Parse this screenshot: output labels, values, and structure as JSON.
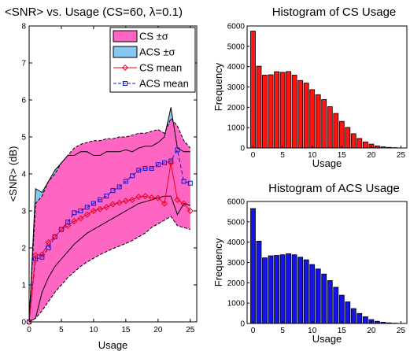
{
  "chart_data": [
    {
      "type": "line",
      "title": "<SNR> vs. Usage (CS=60, λ=0.1)",
      "xlabel": "Usage",
      "ylabel": "<SNR> (dB)",
      "xlim": [
        0,
        26
      ],
      "ylim": [
        0,
        8
      ],
      "xticks": [
        "0",
        "5",
        "10",
        "15",
        "20",
        "25"
      ],
      "yticks": [
        "0",
        "1",
        "2",
        "3",
        "4",
        "5",
        "6",
        "7",
        "8"
      ],
      "legend_position": "top-right",
      "legend": [
        "CS ±σ",
        "ACS ±σ",
        "CS mean",
        "ACS mean"
      ],
      "colors": {
        "cs_band": "#ff66c4",
        "acs_band": "#86c8f2",
        "cs_mean": "#e8001c",
        "acs_mean": "#0a14d4",
        "band_edge": "#000000"
      },
      "x": [
        0,
        1,
        2,
        3,
        4,
        5,
        6,
        7,
        8,
        9,
        10,
        11,
        12,
        13,
        14,
        15,
        16,
        17,
        18,
        19,
        20,
        21,
        22,
        23,
        24,
        25
      ],
      "series": [
        {
          "name": "CS mean",
          "style": "solid-diamond",
          "values": [
            0,
            1.8,
            1.82,
            2.15,
            2.3,
            2.5,
            2.6,
            2.72,
            2.8,
            2.9,
            3.0,
            3.05,
            3.1,
            3.18,
            3.22,
            3.27,
            3.3,
            3.38,
            3.4,
            3.36,
            3.35,
            3.2,
            4.3,
            3.3,
            3.2,
            3.0
          ]
        },
        {
          "name": "ACS mean",
          "style": "dashed-square",
          "values": [
            0,
            1.7,
            1.75,
            2.0,
            2.3,
            2.5,
            2.7,
            2.95,
            3.0,
            3.1,
            3.2,
            3.3,
            3.4,
            3.55,
            3.65,
            3.8,
            3.95,
            4.1,
            4.15,
            4.15,
            4.25,
            4.3,
            4.35,
            4.65,
            3.8,
            3.75
          ]
        },
        {
          "name": "CS upper",
          "style": "band-edge",
          "values": [
            0,
            3.2,
            3.4,
            3.8,
            4.0,
            4.3,
            4.5,
            4.7,
            4.8,
            4.85,
            4.9,
            4.9,
            4.95,
            4.95,
            5.0,
            5.0,
            5.05,
            5.1,
            5.1,
            5.15,
            5.2,
            5.1,
            5.5,
            5.3,
            4.9,
            4.7
          ]
        },
        {
          "name": "CS lower",
          "style": "band-edge",
          "values": [
            0,
            0.1,
            0.3,
            0.55,
            0.8,
            1.0,
            1.2,
            1.35,
            1.5,
            1.62,
            1.72,
            1.82,
            1.9,
            1.98,
            2.05,
            2.12,
            2.2,
            2.3,
            2.4,
            2.55,
            2.65,
            2.75,
            2.85,
            2.6,
            2.55,
            2.5
          ]
        },
        {
          "name": "ACS upper",
          "style": "band-edge",
          "values": [
            0,
            3.6,
            3.5,
            3.8,
            4.1,
            4.3,
            4.5,
            4.5,
            4.6,
            4.6,
            4.5,
            4.5,
            4.6,
            4.6,
            4.6,
            4.65,
            4.6,
            4.7,
            4.75,
            4.75,
            4.85,
            5.0,
            5.8,
            4.7,
            4.6,
            4.6
          ]
        },
        {
          "name": "ACS lower",
          "style": "band-edge",
          "values": [
            0,
            0.1,
            0.8,
            1.2,
            1.5,
            1.7,
            1.9,
            2.1,
            2.25,
            2.4,
            2.5,
            2.6,
            2.7,
            2.8,
            2.9,
            3.0,
            3.1,
            3.2,
            3.25,
            3.3,
            3.35,
            3.4,
            3.4,
            2.9,
            3.2,
            3.15
          ]
        }
      ]
    },
    {
      "type": "bar",
      "title": "Histogram of CS Usage",
      "xlabel": "Usage",
      "ylabel": "Frequency",
      "xlim": [
        -1,
        26
      ],
      "ylim": [
        0,
        6000
      ],
      "xticks": [
        "0",
        "5",
        "10",
        "15",
        "20",
        "25"
      ],
      "yticks": [
        "0",
        "1000",
        "2000",
        "3000",
        "4000",
        "5000",
        "6000"
      ],
      "color": "#ff1414",
      "categories": [
        0,
        1,
        2,
        3,
        4,
        5,
        6,
        7,
        8,
        9,
        10,
        11,
        12,
        13,
        14,
        15,
        16,
        17,
        18,
        19,
        20,
        21,
        22,
        23,
        24,
        25
      ],
      "values": [
        5750,
        4020,
        3580,
        3600,
        3750,
        3720,
        3760,
        3580,
        3320,
        3190,
        2870,
        2620,
        2380,
        2030,
        1700,
        1310,
        1010,
        700,
        470,
        300,
        190,
        100,
        55,
        30,
        15,
        5
      ]
    },
    {
      "type": "bar",
      "title": "Histogram of ACS Usage",
      "xlabel": "Usage",
      "ylabel": "Frequency",
      "xlim": [
        -1,
        26
      ],
      "ylim": [
        0,
        6000
      ],
      "xticks": [
        "0",
        "5",
        "10",
        "15",
        "20",
        "25"
      ],
      "yticks": [
        "0",
        "1000",
        "2000",
        "3000",
        "4000",
        "5000",
        "6000"
      ],
      "color": "#1414e8",
      "categories": [
        0,
        1,
        2,
        3,
        4,
        5,
        6,
        7,
        8,
        9,
        10,
        11,
        12,
        13,
        14,
        15,
        16,
        17,
        18,
        19,
        20,
        21,
        22,
        23,
        24,
        25
      ],
      "values": [
        5650,
        4050,
        3230,
        3330,
        3350,
        3380,
        3430,
        3380,
        3260,
        3130,
        2900,
        2680,
        2430,
        2110,
        1780,
        1390,
        1060,
        730,
        490,
        330,
        190,
        110,
        60,
        30,
        15,
        5
      ]
    }
  ]
}
